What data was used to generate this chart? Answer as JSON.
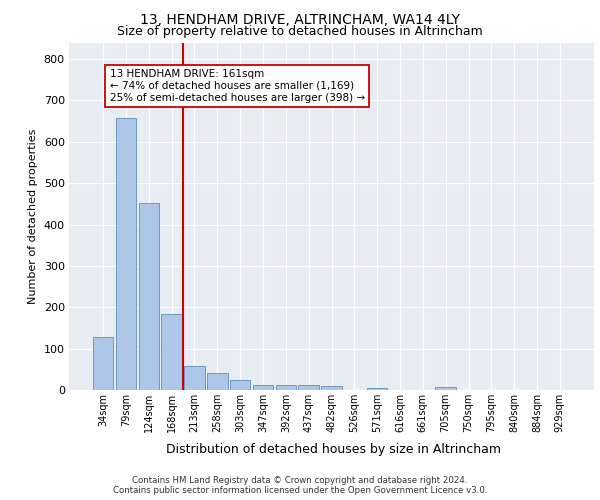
{
  "title1": "13, HENDHAM DRIVE, ALTRINCHAM, WA14 4LY",
  "title2": "Size of property relative to detached houses in Altrincham",
  "xlabel": "Distribution of detached houses by size in Altrincham",
  "ylabel": "Number of detached properties",
  "bar_labels": [
    "34sqm",
    "79sqm",
    "124sqm",
    "168sqm",
    "213sqm",
    "258sqm",
    "303sqm",
    "347sqm",
    "392sqm",
    "437sqm",
    "482sqm",
    "526sqm",
    "571sqm",
    "616sqm",
    "661sqm",
    "705sqm",
    "750sqm",
    "795sqm",
    "840sqm",
    "884sqm",
    "929sqm"
  ],
  "bar_values": [
    128,
    658,
    452,
    183,
    58,
    42,
    25,
    12,
    13,
    11,
    9,
    0,
    6,
    0,
    0,
    8,
    0,
    0,
    0,
    0,
    0
  ],
  "bar_color": "#aec6e8",
  "bar_edge_color": "#5a8fc0",
  "vline_x": 3.5,
  "vline_color": "#cc0000",
  "annotation_text": "13 HENDHAM DRIVE: 161sqm\n← 74% of detached houses are smaller (1,169)\n25% of semi-detached houses are larger (398) →",
  "annotation_box_color": "white",
  "annotation_box_edge_color": "#cc0000",
  "ylim": [
    0,
    840
  ],
  "yticks": [
    0,
    100,
    200,
    300,
    400,
    500,
    600,
    700,
    800
  ],
  "background_color": "#e8edf4",
  "grid_color": "white",
  "footer_line1": "Contains HM Land Registry data © Crown copyright and database right 2024.",
  "footer_line2": "Contains public sector information licensed under the Open Government Licence v3.0."
}
